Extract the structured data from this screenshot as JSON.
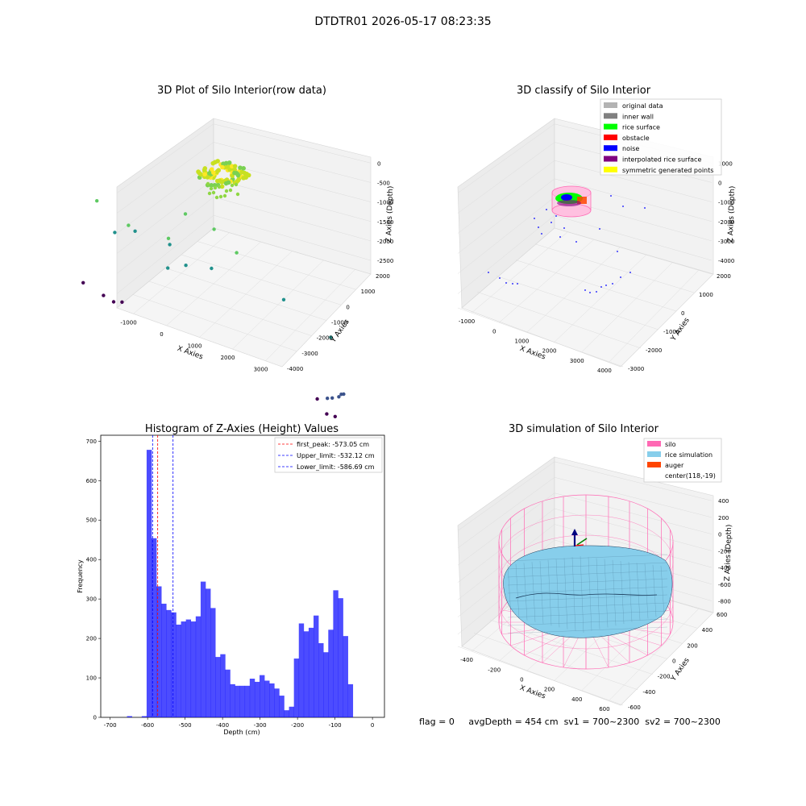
{
  "figure": {
    "suptitle": "DTDTR01 2026-05-17 08:23:35",
    "footer": {
      "flag": "flag = 0",
      "avg": "avgDepth = 454 cm",
      "sv1": "sv1 = 700~2300",
      "sv2": "sv2 = 700~2300"
    }
  },
  "chart_data": [
    {
      "type": "scatter",
      "title": "3D Plot of Silo Interior(row data)",
      "xlabel": "X Axies",
      "ylabel": "Y Axies",
      "zlabel": "Z Axies (Depth)",
      "x_ticks": [
        "-1000",
        "0",
        "1000",
        "2000",
        "3000"
      ],
      "y_ticks": [
        "-4000",
        "-3000",
        "-2000",
        "-1000",
        "0",
        "1000",
        "2000"
      ],
      "z_ticks": [
        "0",
        "-500",
        "-1000",
        "-1500",
        "-2000",
        "-2500"
      ],
      "colormap": "viridis",
      "cluster": {
        "x": [
          -300,
          300
        ],
        "z": [
          -600,
          0
        ],
        "color": "#c8e020"
      },
      "points": [
        {
          "x": -1100,
          "y": 1800,
          "z": -2700
        },
        {
          "x": -700,
          "y": 1600,
          "z": -2800
        },
        {
          "x": -500,
          "y": 1500,
          "z": -2850
        },
        {
          "x": -300,
          "y": 1500,
          "z": -2800
        },
        {
          "x": 2200,
          "y": -3600,
          "z": -2600
        },
        {
          "x": 2400,
          "y": -3700,
          "z": -2500
        },
        {
          "x": 2600,
          "y": -3500,
          "z": -2500
        },
        {
          "x": 2800,
          "y": -3400,
          "z": -2450
        },
        {
          "x": 2900,
          "y": -3300,
          "z": -2400
        },
        {
          "x": 3000,
          "y": -3200,
          "z": -2400
        },
        {
          "x": 2500,
          "y": -3900,
          "z": -2800
        },
        {
          "x": 2300,
          "y": -3900,
          "z": -2800
        },
        {
          "x": 3200,
          "y": -2000,
          "z": -1500
        },
        {
          "x": 2500,
          "y": -1000,
          "z": -1200
        },
        {
          "x": 1800,
          "y": 0,
          "z": -700
        },
        {
          "x": 1200,
          "y": 0,
          "z": -1200
        },
        {
          "x": 800,
          "y": 500,
          "z": -1400
        },
        {
          "x": 500,
          "y": 700,
          "z": -1100
        },
        {
          "x": 300,
          "y": 300,
          "z": -900
        },
        {
          "x": -200,
          "y": 1000,
          "z": -1100
        },
        {
          "x": -600,
          "y": 1200,
          "z": -1300
        },
        {
          "x": -400,
          "y": 900,
          "z": -1000
        },
        {
          "x": 1000,
          "y": 1000,
          "z": -400
        },
        {
          "x": 1600,
          "y": 800,
          "z": -500
        },
        {
          "x": 200,
          "y": 100,
          "z": -1500
        },
        {
          "x": -900,
          "y": 1500,
          "z": -800
        }
      ]
    },
    {
      "type": "scatter",
      "title": "3D classify of Silo Interior",
      "xlabel": "X Axies",
      "ylabel": "Y Axies",
      "zlabel": "Z Axies (Depth)",
      "x_ticks": [
        "-1000",
        "0",
        "1000",
        "2000",
        "3000",
        "4000"
      ],
      "y_ticks": [
        "-3000",
        "-2000",
        "-1000",
        "0",
        "1000",
        "2000"
      ],
      "z_ticks": [
        "1000",
        "0",
        "-1000",
        "-2000",
        "-3000",
        "-4000"
      ],
      "legend": [
        {
          "label": "original data",
          "color": "#b3b3b3"
        },
        {
          "label": "inner wall",
          "color": "#808080"
        },
        {
          "label": "rice surface",
          "color": "#00ff00"
        },
        {
          "label": "obstacle",
          "color": "#ff0000"
        },
        {
          "label": "noise",
          "color": "#0000ff"
        },
        {
          "label": "interpolated rice surface",
          "color": "#800080"
        },
        {
          "label": "symmetric generated points",
          "color": "#ffff00"
        }
      ]
    },
    {
      "type": "bar",
      "title": "Histogram of Z-Axies (Height) Values",
      "xlabel": "Depth (cm)",
      "ylabel": "Frequency",
      "xlim": [
        -725,
        32
      ],
      "ylim": [
        0,
        715
      ],
      "x_ticks": [
        -700,
        -600,
        -500,
        -400,
        -300,
        -200,
        -100,
        0
      ],
      "y_ticks": [
        0,
        100,
        200,
        300,
        400,
        500,
        600,
        700
      ],
      "bin_start": -655,
      "bin_width": 13.1,
      "color": "#0000ff",
      "values": [
        3,
        0,
        0,
        3,
        678,
        454,
        332,
        288,
        272,
        266,
        235,
        243,
        248,
        243,
        256,
        344,
        326,
        277,
        153,
        160,
        121,
        84,
        80,
        80,
        80,
        98,
        90,
        107,
        93,
        86,
        73,
        55,
        18,
        27,
        149,
        238,
        218,
        227,
        258,
        188,
        165,
        222,
        322,
        302,
        206,
        84
      ],
      "vlines": [
        {
          "label": "first_peak: -573.05 cm",
          "value": -573.05,
          "color": "#ff0000"
        },
        {
          "label": "Upper_limit: -532.12 cm",
          "value": -532.12,
          "color": "#0000ff"
        },
        {
          "label": "Lower_limit: -586.69 cm",
          "value": -586.69,
          "color": "#0000ff"
        }
      ]
    },
    {
      "type": "surface",
      "title": "3D simulation of Silo Interior",
      "xlabel": "X Axies",
      "ylabel": "Y Axies",
      "zlabel": "Z Axies (Depth)",
      "x_ticks": [
        "-400",
        "-200",
        "0",
        "200",
        "400",
        "600"
      ],
      "y_ticks": [
        "-600",
        "-400",
        "-200",
        "0",
        "200",
        "400",
        "600"
      ],
      "z_ticks": [
        "400",
        "200",
        "0",
        "-200",
        "-400",
        "-600",
        "-800"
      ],
      "legend": [
        {
          "label": "silo",
          "color": "#ff69b4"
        },
        {
          "label": "rice simulation",
          "color": "#87ceeb"
        },
        {
          "label": "auger",
          "color": "#ff4500"
        },
        {
          "label": "center(118,-19)",
          "color": ""
        }
      ]
    }
  ]
}
